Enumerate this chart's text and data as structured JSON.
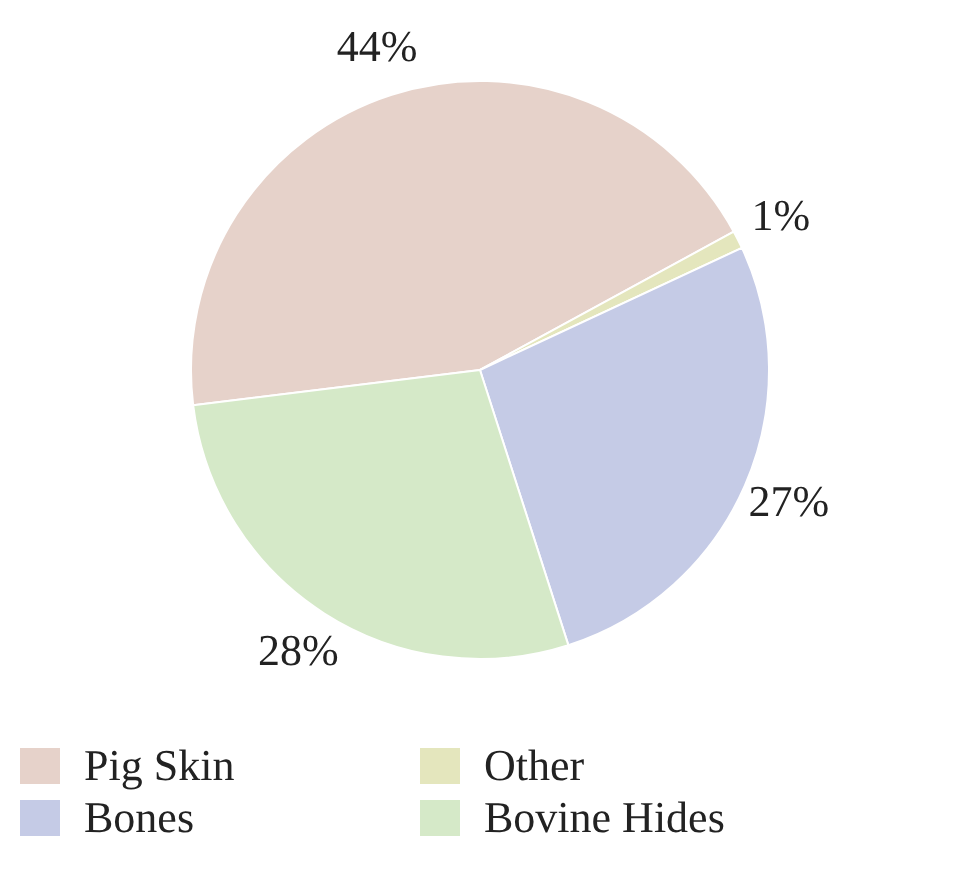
{
  "chart_data": {
    "type": "pie",
    "categories": [
      "Pig Skin",
      "Other",
      "Bones",
      "Bovine Hides"
    ],
    "values": [
      44,
      1,
      27,
      28
    ],
    "colors": [
      "#e6d2ca",
      "#e4e6bd",
      "#c5cbe6",
      "#d5e9c8"
    ],
    "value_labels": [
      "44%",
      "1%",
      "27%",
      "28%"
    ],
    "legend": "bottom"
  }
}
